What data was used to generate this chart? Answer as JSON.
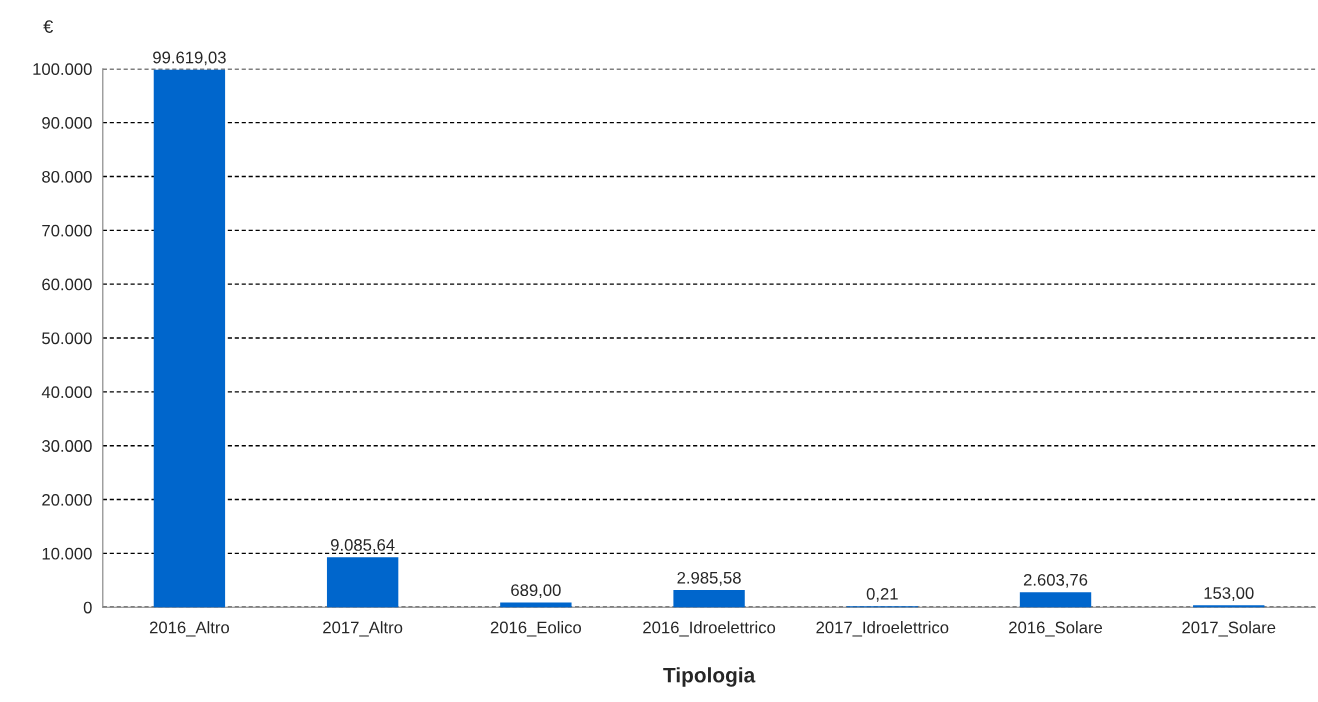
{
  "chart_data": {
    "type": "bar",
    "xlabel": "Tipologia",
    "ylabel": "€",
    "categories": [
      "2016_Altro",
      "2017_Altro",
      "2016_Eolico",
      "2016_Idroelettrico",
      "2017_Idroelettrico",
      "2016_Solare",
      "2017_Solare"
    ],
    "values": [
      99619.03,
      9085.64,
      689.0,
      2985.58,
      0.21,
      2603.76,
      153.0
    ],
    "value_labels": [
      "99.619,03",
      "9.085,64",
      "689,00",
      "2.985,58",
      "0,21",
      "2.603,76",
      "153,00"
    ],
    "color": "#0066cc",
    "ylim": [
      0,
      100000
    ],
    "yticks": [
      {
        "value": 0,
        "label": "0"
      },
      {
        "value": 10000,
        "label": "10.000"
      },
      {
        "value": 20000,
        "label": "20.000"
      },
      {
        "value": 30000,
        "label": "30.000"
      },
      {
        "value": 40000,
        "label": "40.000"
      },
      {
        "value": 50000,
        "label": "50.000"
      },
      {
        "value": 60000,
        "label": "60.000"
      },
      {
        "value": 70000,
        "label": "70.000"
      },
      {
        "value": 80000,
        "label": "80.000"
      },
      {
        "value": 90000,
        "label": "90.000"
      },
      {
        "value": 100000,
        "label": "100.000"
      }
    ],
    "grid": "y",
    "legend": false
  }
}
